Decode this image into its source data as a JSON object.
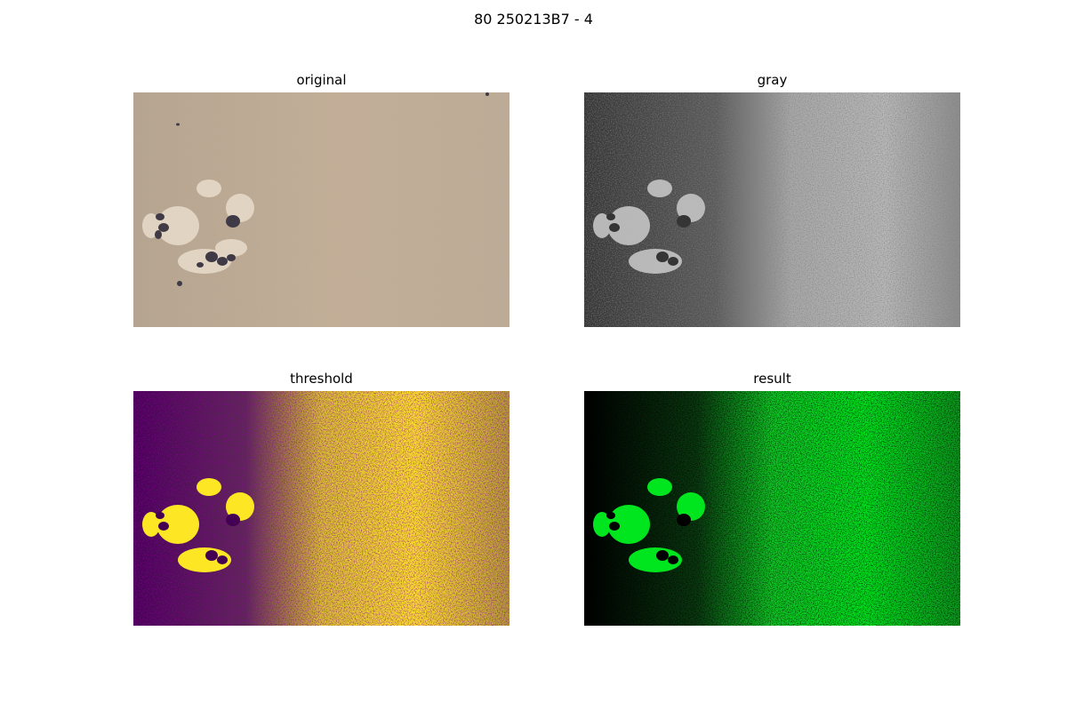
{
  "figure": {
    "suptitle": "80 250213B7 - 4"
  },
  "panels": [
    {
      "title": "original",
      "colormap": "rgb-photo",
      "base": "#b9a690",
      "light": "#cdbaa2",
      "dark": "#45404a"
    },
    {
      "title": "gray",
      "colormap": "gray",
      "low": "#353535",
      "high": "#bfbfbf"
    },
    {
      "title": "threshold",
      "colormap": "viridis",
      "low": "#440154",
      "high": "#fde725"
    },
    {
      "title": "result",
      "colormap": "green-mask",
      "low": "#000000",
      "high": "#00e61e"
    }
  ]
}
